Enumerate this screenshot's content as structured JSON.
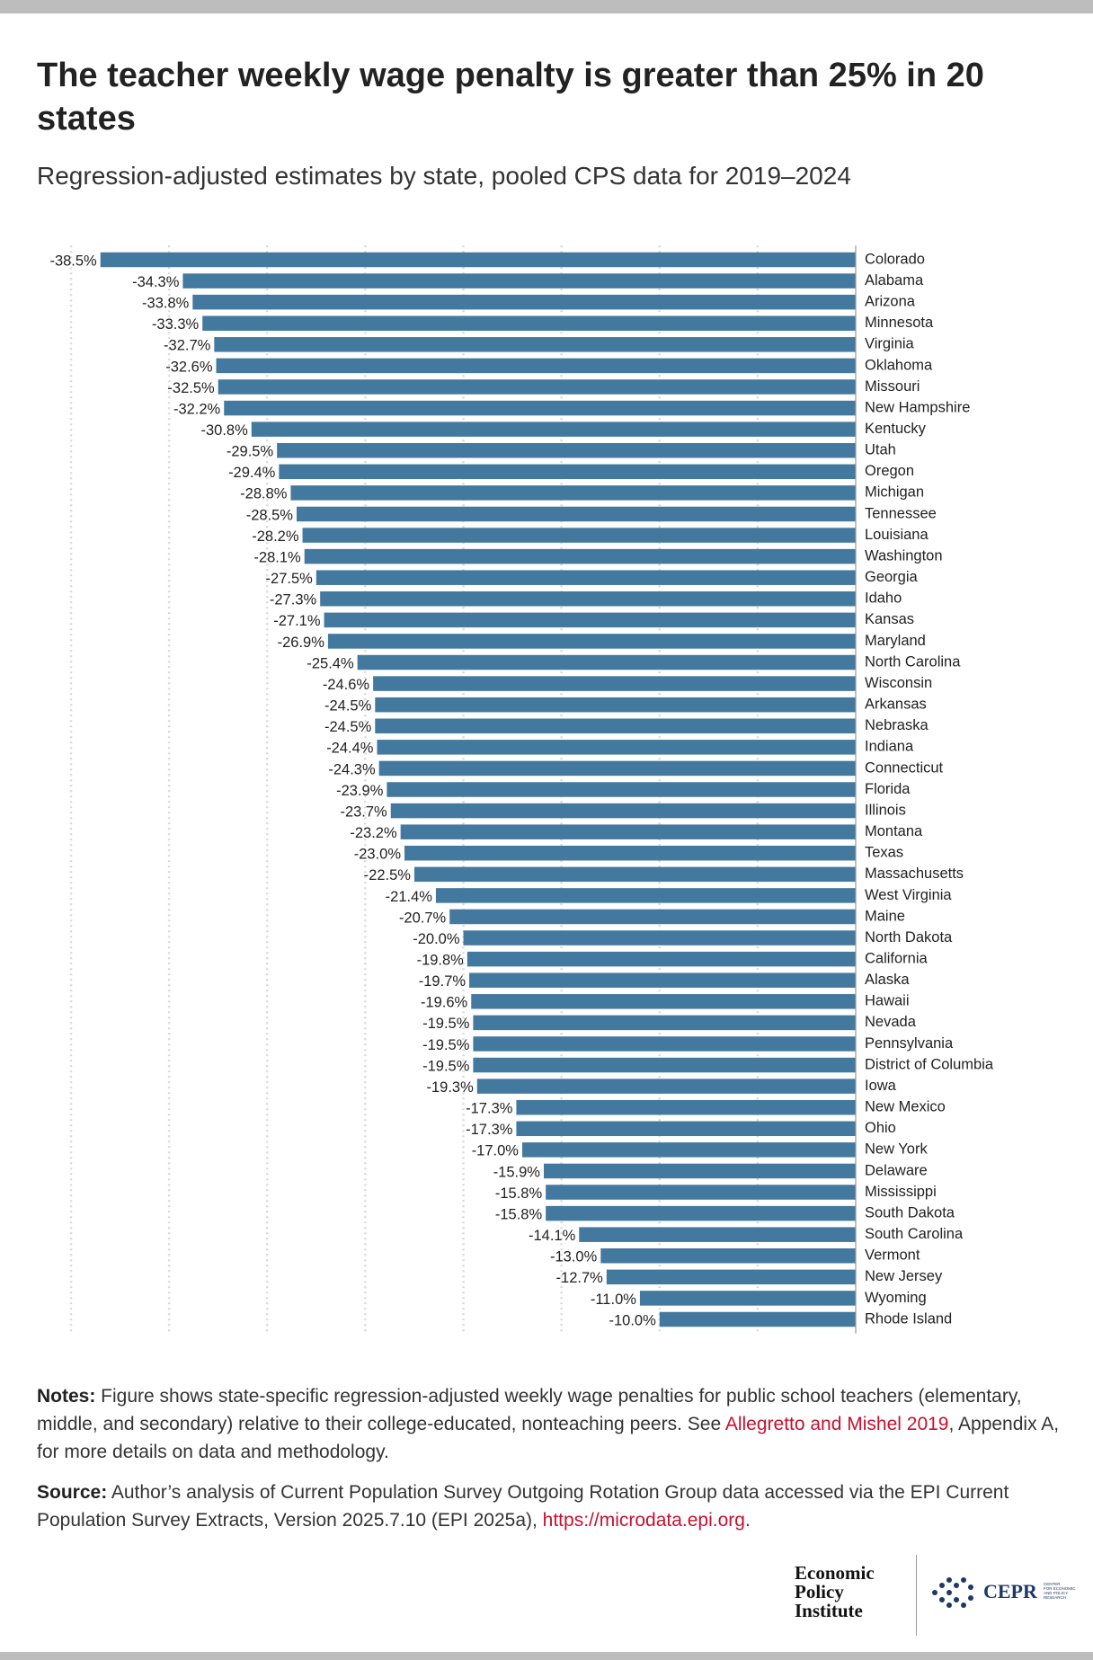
{
  "chart_data": {
    "type": "bar",
    "orientation": "horizontal",
    "title": "The teacher weekly wage penalty is greater than 25% in 20 states",
    "subtitle": "Regression-adjusted estimates by state, pooled CPS data for 2019–2024",
    "categories": [
      "Colorado",
      "Alabama",
      "Arizona",
      "Minnesota",
      "Virginia",
      "Oklahoma",
      "Missouri",
      "New Hampshire",
      "Kentucky",
      "Utah",
      "Oregon",
      "Michigan",
      "Tennessee",
      "Louisiana",
      "Washington",
      "Georgia",
      "Idaho",
      "Kansas",
      "Maryland",
      "North Carolina",
      "Wisconsin",
      "Arkansas",
      "Nebraska",
      "Indiana",
      "Connecticut",
      "Florida",
      "Illinois",
      "Montana",
      "Texas",
      "Massachusetts",
      "West Virginia",
      "Maine",
      "North Dakota",
      "California",
      "Alaska",
      "Hawaii",
      "Nevada",
      "Pennsylvania",
      "District of Columbia",
      "Iowa",
      "New Mexico",
      "Ohio",
      "New York",
      "Delaware",
      "Mississippi",
      "South Dakota",
      "South Carolina",
      "Vermont",
      "New Jersey",
      "Wyoming",
      "Rhode Island"
    ],
    "values": [
      -38.5,
      -34.3,
      -33.8,
      -33.3,
      -32.7,
      -32.6,
      -32.5,
      -32.2,
      -30.8,
      -29.5,
      -29.4,
      -28.8,
      -28.5,
      -28.2,
      -28.1,
      -27.5,
      -27.3,
      -27.1,
      -26.9,
      -25.4,
      -24.6,
      -24.5,
      -24.5,
      -24.4,
      -24.3,
      -23.9,
      -23.7,
      -23.2,
      -23.0,
      -22.5,
      -21.4,
      -20.7,
      -20.0,
      -19.8,
      -19.7,
      -19.6,
      -19.5,
      -19.5,
      -19.5,
      -19.3,
      -17.3,
      -17.3,
      -17.0,
      -15.9,
      -15.8,
      -15.8,
      -14.1,
      -13.0,
      -12.7,
      -11.0,
      -10.0
    ],
    "value_labels": [
      "-38.5%",
      "-34.3%",
      "-33.8%",
      "-33.3%",
      "-32.7%",
      "-32.6%",
      "-32.5%",
      "-32.2%",
      "-30.8%",
      "-29.5%",
      "-29.4%",
      "-28.8%",
      "-28.5%",
      "-28.2%",
      "-28.1%",
      "-27.5%",
      "-27.3%",
      "-27.1%",
      "-26.9%",
      "-25.4%",
      "-24.6%",
      "-24.5%",
      "-24.5%",
      "-24.4%",
      "-24.3%",
      "-23.9%",
      "-23.7%",
      "-23.2%",
      "-23.0%",
      "-22.5%",
      "-21.4%",
      "-20.7%",
      "-20.0%",
      "-19.8%",
      "-19.7%",
      "-19.6%",
      "-19.5%",
      "-19.5%",
      "-19.5%",
      "-19.3%",
      "-17.3%",
      "-17.3%",
      "-17.0%",
      "-15.9%",
      "-15.8%",
      "-15.8%",
      "-14.1%",
      "-13.0%",
      "-12.7%",
      "-11.0%",
      "-10.0%"
    ],
    "color": "#44799f",
    "xlim": [
      -40,
      0
    ],
    "xticks": [
      -40,
      -35,
      -30,
      -25,
      -20,
      -15,
      -10,
      -5,
      0
    ],
    "grid": true
  },
  "notes": {
    "label": "Notes:",
    "text": " Figure shows state-specific regression-adjusted weekly wage penalties for public school teachers (elementary, middle, and secondary) relative to their college-educated, nonteaching peers. See ",
    "link": "Allegretto and Mishel 2019",
    "text_after": ", Appendix A, for more details on data and methodology."
  },
  "source": {
    "label": "Source:",
    "text": " Author’s analysis of Current Population Survey Outgoing Rotation Group data accessed via the EPI Current Population Survey Extracts, Version 2025.7.10 (EPI 2025a),  ",
    "link": "https://microdata.epi.org",
    "text_after": "."
  },
  "logos": {
    "epi": [
      "Economic",
      "Policy",
      "Institute"
    ],
    "cepr": "CEPR",
    "cepr_sub": [
      "CENTER",
      "FOR ECONOMIC",
      "AND POLICY",
      "RESEARCH"
    ]
  }
}
